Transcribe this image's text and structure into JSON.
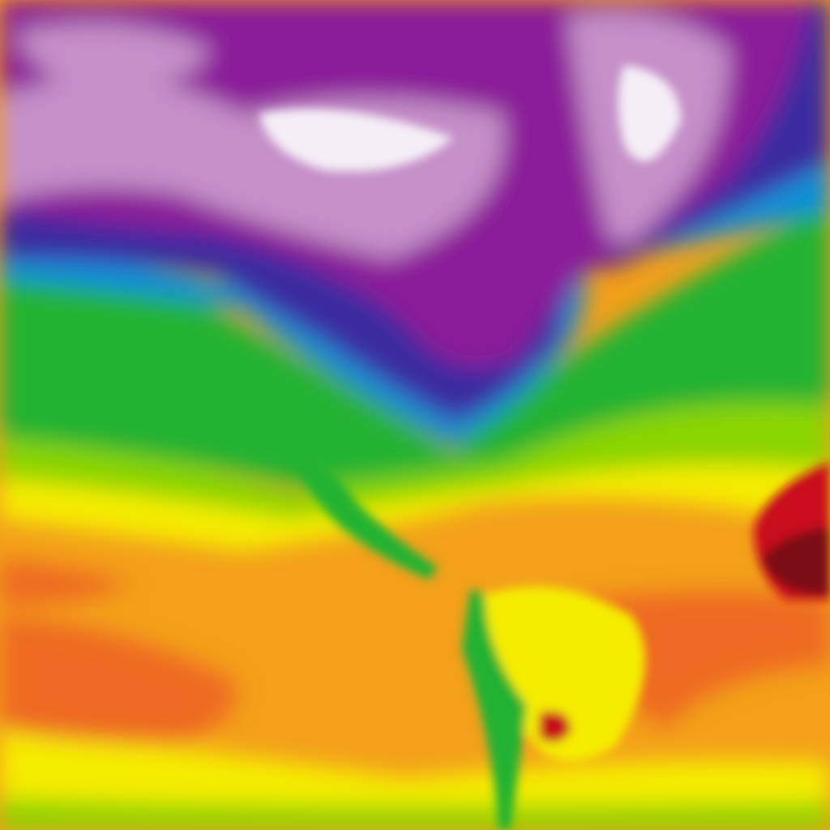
{
  "map": {
    "type": "temperature-heatmap",
    "palette": {
      "coldest": "#f4eef6",
      "very_cold": "#c58fc8",
      "cold": "#8b1a99",
      "cool": "#3a2ba0",
      "chilly": "#0a8fd8",
      "mild": "#22b232",
      "warm": "#8ad400",
      "warmer": "#f5ec00",
      "hot": "#f3a01a",
      "very_hot": "#ee6a22",
      "hottest": "#c8101c",
      "extreme": "#7a0a18"
    }
  }
}
